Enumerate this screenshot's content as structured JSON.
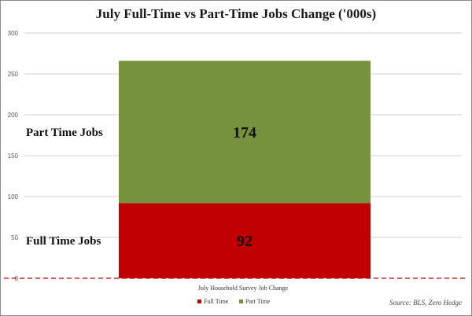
{
  "chart_data": {
    "type": "bar",
    "stacked": true,
    "title": "July Full-Time vs Part-Time Jobs Change ('000s)",
    "categories": [
      "July Household Survey Job Change"
    ],
    "series": [
      {
        "name": "Full Time",
        "values": [
          92
        ],
        "color": "#c00000",
        "segment_label": "Full Time Jobs"
      },
      {
        "name": "Part Time",
        "values": [
          174
        ],
        "color": "#76923c",
        "segment_label": "Part Time Jobs"
      }
    ],
    "ylim": [
      0,
      300
    ],
    "yticks": [
      0,
      50,
      100,
      150,
      200,
      250,
      300
    ],
    "grid": true,
    "legend_position": "bottom",
    "zero_line_color": "#c00000",
    "source": "Source: BLS, Zero Hedge"
  }
}
